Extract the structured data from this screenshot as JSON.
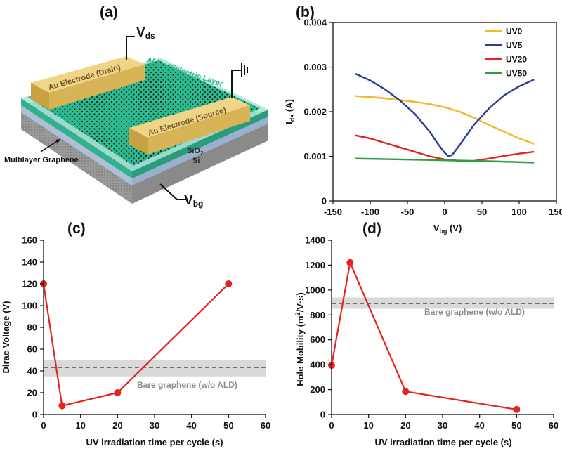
{
  "panels": {
    "a": "(a)",
    "b": "(b)",
    "c": "(c)",
    "d": "(d)"
  },
  "diagram": {
    "vds_main": "V",
    "vds_sub": "ds",
    "vbg_main": "V",
    "vbg_sub": "bg",
    "drain_label": "Au Electrode (Drain)",
    "source_label": "Au Electrode (Source)",
    "dielectric_pre": "Al",
    "dielectric_sub1": "2",
    "dielectric_mid": "O",
    "dielectric_sub2": "3",
    "dielectric_post": " Dielectric Layer",
    "sio2_main": "SiO",
    "sio2_sub": "2",
    "si_label": "Si",
    "graphene_label": "Multilayer Graphene",
    "colors": {
      "gold": "#e8c56a",
      "dielectric": "#3fc6a0",
      "graphene": "#1a1a1a"
    }
  },
  "chart_data": [
    {
      "id": "b",
      "type": "line",
      "title": "",
      "xlabel_main": "V",
      "xlabel_sub": "bg",
      "xlabel_post": " (V)",
      "ylabel_main": "I",
      "ylabel_sub": "ds",
      "ylabel_post": " (A)",
      "xlim": [
        -150,
        150
      ],
      "ylim": [
        0,
        0.004
      ],
      "xticks": [
        "-150",
        "-100",
        "-50",
        "0",
        "50",
        "100",
        "150"
      ],
      "xtick_values": [
        -150,
        -100,
        -50,
        0,
        50,
        100,
        150
      ],
      "yticks": [
        "0",
        "0.001",
        "0.002",
        "0.003",
        "0.004"
      ],
      "ytick_values": [
        0,
        0.001,
        0.002,
        0.003,
        0.004
      ],
      "legend_position": "top-right",
      "series": [
        {
          "name": "UV0",
          "color": "#f5b820",
          "x": [
            -120,
            -100,
            -80,
            -60,
            -40,
            -20,
            0,
            20,
            40,
            60,
            80,
            100,
            120
          ],
          "y": [
            0.00235,
            0.00233,
            0.0023,
            0.00226,
            0.00222,
            0.00217,
            0.0021,
            0.002,
            0.00186,
            0.0017,
            0.00155,
            0.0014,
            0.00128
          ]
        },
        {
          "name": "UV5",
          "color": "#2b3d9a",
          "x": [
            -120,
            -100,
            -80,
            -60,
            -40,
            -20,
            -10,
            0,
            5,
            10,
            20,
            40,
            60,
            80,
            100,
            120
          ],
          "y": [
            0.00285,
            0.0027,
            0.0025,
            0.00225,
            0.00195,
            0.00155,
            0.0013,
            0.00108,
            0.001,
            0.00103,
            0.00125,
            0.00172,
            0.00208,
            0.00237,
            0.00257,
            0.00272
          ]
        },
        {
          "name": "UV20",
          "color": "#e52421",
          "x": [
            -120,
            -100,
            -80,
            -60,
            -40,
            -20,
            0,
            20,
            30,
            40,
            60,
            80,
            100,
            120
          ],
          "y": [
            0.00147,
            0.0014,
            0.0013,
            0.0012,
            0.0011,
            0.001,
            0.00093,
            0.0009,
            0.00089,
            0.0009,
            0.00095,
            0.00101,
            0.00106,
            0.0011
          ]
        },
        {
          "name": "UV50",
          "color": "#2e9e43",
          "x": [
            -120,
            -60,
            0,
            60,
            120
          ],
          "y": [
            0.00095,
            0.00093,
            0.00091,
            0.00089,
            0.00086
          ]
        }
      ]
    },
    {
      "id": "c",
      "type": "line",
      "title": "",
      "xlabel": "UV irradiation time per cycle (s)",
      "ylabel": "Dirac Voltage (V)",
      "xlim": [
        0,
        60
      ],
      "ylim": [
        0,
        160
      ],
      "xticks": [
        "0",
        "10",
        "20",
        "30",
        "40",
        "50",
        "60"
      ],
      "xtick_values": [
        0,
        10,
        20,
        30,
        40,
        50,
        60
      ],
      "yticks": [
        "0",
        "20",
        "40",
        "60",
        "80",
        "100",
        "120",
        "140",
        "160"
      ],
      "ytick_values": [
        0,
        20,
        40,
        60,
        80,
        100,
        120,
        140,
        160
      ],
      "series": [
        {
          "name": "Dirac voltage",
          "color": "#e52421",
          "x": [
            0,
            5,
            20,
            50
          ],
          "y": [
            120,
            8,
            20,
            120
          ]
        }
      ],
      "reference": {
        "label": "Bare graphene (w/o ALD)",
        "value": 43,
        "band": [
          35,
          50
        ],
        "color": "#8c8c8c"
      }
    },
    {
      "id": "d",
      "type": "line",
      "title": "",
      "xlabel": "UV irradiation time per cycle (s)",
      "ylabel_pre": "Hole Mobility (m",
      "ylabel_sup": "2",
      "ylabel_post": "/V·s)",
      "xlim": [
        0,
        60
      ],
      "ylim": [
        0,
        1400
      ],
      "xticks": [
        "0",
        "10",
        "20",
        "30",
        "40",
        "50",
        "60"
      ],
      "xtick_values": [
        0,
        10,
        20,
        30,
        40,
        50,
        60
      ],
      "yticks": [
        "0",
        "200",
        "400",
        "600",
        "800",
        "1000",
        "1200",
        "1400"
      ],
      "ytick_values": [
        0,
        200,
        400,
        600,
        800,
        1000,
        1200,
        1400
      ],
      "series": [
        {
          "name": "Hole mobility",
          "color": "#e52421",
          "x": [
            0,
            5,
            20,
            50
          ],
          "y": [
            395,
            1220,
            185,
            40
          ]
        }
      ],
      "reference": {
        "label": "Bare graphene (w/o ALD)",
        "value": 890,
        "band": [
          850,
          940
        ],
        "color": "#8c8c8c"
      }
    }
  ]
}
